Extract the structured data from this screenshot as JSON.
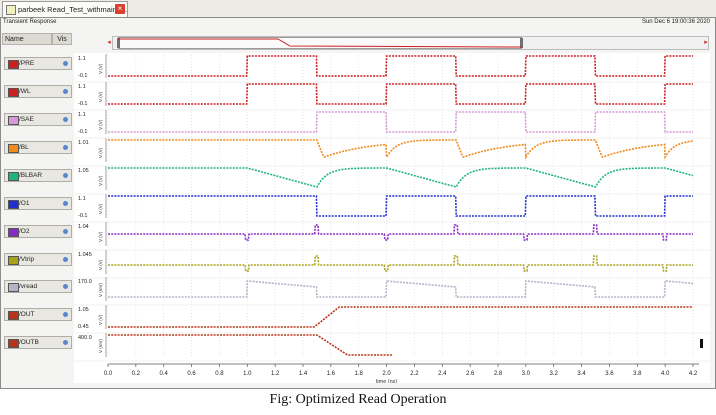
{
  "tab": {
    "label": "parbeek Read_Test_withmainP...",
    "close_icon": "close-icon"
  },
  "panel": {
    "title": "Transient Response",
    "timestamp": "Sun Dec 6 19:00:36 2020"
  },
  "list_header": {
    "name": "Name",
    "vis": "Vis"
  },
  "signals": [
    {
      "name": "/PRE",
      "color": "#cc1f1f",
      "y_top": "1.1",
      "y_bottom": "-0.1",
      "unit": "V (V)"
    },
    {
      "name": "/WL",
      "color": "#cc1f1f",
      "y_top": "1.1",
      "y_bottom": "-0.1",
      "unit": "V (V)"
    },
    {
      "name": "/SAE",
      "color": "#d79ad6",
      "y_top": "1.1",
      "y_bottom": "-0.1",
      "unit": "V (V)"
    },
    {
      "name": "/BL",
      "color": "#f08a1c",
      "y_top": "1.01",
      "y_bottom": "",
      "unit": "V (V)"
    },
    {
      "name": "/BLBAR",
      "color": "#1fb57a",
      "y_top": "1.05",
      "y_bottom": "",
      "unit": "V (V)"
    },
    {
      "name": "/O1",
      "color": "#1f2fd0",
      "y_top": "1.1",
      "y_bottom": "-0.1",
      "unit": "V (V)"
    },
    {
      "name": "/O2",
      "color": "#8a2bc6",
      "y_top": "1.04",
      "y_bottom": "",
      "unit": "V (V)"
    },
    {
      "name": "/Vtrip",
      "color": "#a8a21a",
      "y_top": "1.045",
      "y_bottom": "",
      "unit": "V (V)"
    },
    {
      "name": "/vread",
      "color": "#b4b4c8",
      "y_top": "170.0",
      "y_bottom": "",
      "unit": "V (mV)"
    },
    {
      "name": "/OUT",
      "color": "#b8341a",
      "y_top": "1.05",
      "y_bottom": "0.45",
      "unit": "V (V)"
    },
    {
      "name": "/OUTB",
      "color": "#b8341a",
      "y_top": "400.0",
      "y_bottom": "",
      "unit": "V (mV)"
    }
  ],
  "x_axis": {
    "ticks": [
      "0.0",
      "0.2",
      "0.4",
      "0.6",
      "0.8",
      "1.0",
      "1.2",
      "1.4",
      "1.6",
      "1.8",
      "2.0",
      "2.2",
      "2.4",
      "2.6",
      "2.8",
      "3.0",
      "3.2",
      "3.4",
      "3.6",
      "3.8",
      "4.0",
      "4.2"
    ],
    "label": "time (ns)"
  },
  "caption": "Fig: Optimized Read Operation"
}
